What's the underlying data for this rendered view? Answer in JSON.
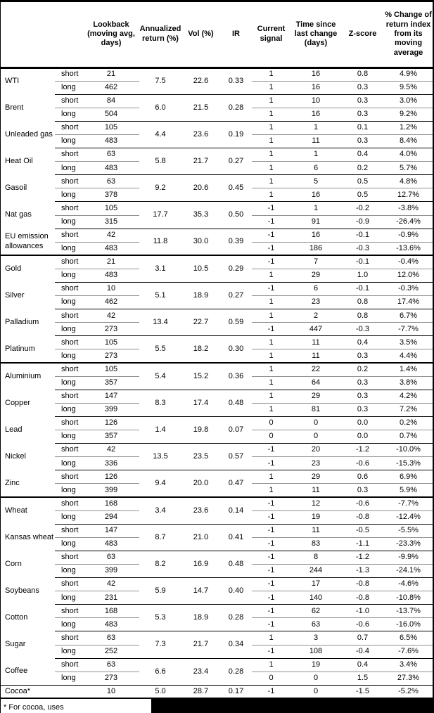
{
  "table": {
    "column_headers": {
      "lookback": "Lookback (moving avg, days)",
      "annualized": "Annualized return (%)",
      "vol": "Vol (%)",
      "ir": "IR",
      "signal": "Current signal",
      "time": "Time since last change (days)",
      "zscore": "Z-score",
      "change": "% Change of return index from its moving average"
    },
    "groups": [
      {
        "name": "WTI",
        "annualized": "7.5",
        "vol": "22.6",
        "ir": "0.33",
        "legs": [
          {
            "leg": "short",
            "lookback": "21",
            "signal": "1",
            "time": "16",
            "zscore": "0.8",
            "change": "4.9%"
          },
          {
            "leg": "long",
            "lookback": "462",
            "signal": "1",
            "time": "16",
            "zscore": "0.3",
            "change": "9.5%"
          }
        ]
      },
      {
        "name": "Brent",
        "annualized": "6.0",
        "vol": "21.5",
        "ir": "0.28",
        "legs": [
          {
            "leg": "short",
            "lookback": "84",
            "signal": "1",
            "time": "10",
            "zscore": "0.3",
            "change": "3.0%"
          },
          {
            "leg": "long",
            "lookback": "504",
            "signal": "1",
            "time": "16",
            "zscore": "0.3",
            "change": "9.2%"
          }
        ]
      },
      {
        "name": "Unleaded gas",
        "annualized": "4.4",
        "vol": "23.6",
        "ir": "0.19",
        "legs": [
          {
            "leg": "short",
            "lookback": "105",
            "signal": "1",
            "time": "1",
            "zscore": "0.1",
            "change": "1.2%"
          },
          {
            "leg": "long",
            "lookback": "483",
            "signal": "1",
            "time": "11",
            "zscore": "0.3",
            "change": "8.4%"
          }
        ]
      },
      {
        "name": "Heat Oil",
        "annualized": "5.8",
        "vol": "21.7",
        "ir": "0.27",
        "legs": [
          {
            "leg": "short",
            "lookback": "63",
            "signal": "1",
            "time": "1",
            "zscore": "0.4",
            "change": "4.0%"
          },
          {
            "leg": "long",
            "lookback": "483",
            "signal": "1",
            "time": "6",
            "zscore": "0.2",
            "change": "5.7%"
          }
        ]
      },
      {
        "name": "Gasoil",
        "annualized": "9.2",
        "vol": "20.6",
        "ir": "0.45",
        "legs": [
          {
            "leg": "short",
            "lookback": "63",
            "signal": "1",
            "time": "5",
            "zscore": "0.5",
            "change": "4.8%"
          },
          {
            "leg": "long",
            "lookback": "378",
            "signal": "1",
            "time": "16",
            "zscore": "0.5",
            "change": "12.7%"
          }
        ]
      },
      {
        "name": "Nat gas",
        "annualized": "17.7",
        "vol": "35.3",
        "ir": "0.50",
        "legs": [
          {
            "leg": "short",
            "lookback": "105",
            "signal": "-1",
            "time": "1",
            "zscore": "-0.2",
            "change": "-3.8%"
          },
          {
            "leg": "long",
            "lookback": "315",
            "signal": "-1",
            "time": "91",
            "zscore": "-0.9",
            "change": "-26.4%"
          }
        ]
      },
      {
        "name": "EU emission allowances",
        "annualized": "11.8",
        "vol": "30.0",
        "ir": "0.39",
        "legs": [
          {
            "leg": "short",
            "lookback": "42",
            "signal": "-1",
            "time": "16",
            "zscore": "-0.1",
            "change": "-0.9%"
          },
          {
            "leg": "long",
            "lookback": "483",
            "signal": "-1",
            "time": "186",
            "zscore": "-0.3",
            "change": "-13.6%"
          }
        ]
      },
      {
        "name": "Gold",
        "section_start": true,
        "annualized": "3.1",
        "vol": "10.5",
        "ir": "0.29",
        "legs": [
          {
            "leg": "short",
            "lookback": "21",
            "signal": "-1",
            "time": "7",
            "zscore": "-0.1",
            "change": "-0.4%"
          },
          {
            "leg": "long",
            "lookback": "483",
            "signal": "1",
            "time": "29",
            "zscore": "1.0",
            "change": "12.0%"
          }
        ]
      },
      {
        "name": "Silver",
        "annualized": "5.1",
        "vol": "18.9",
        "ir": "0.27",
        "legs": [
          {
            "leg": "short",
            "lookback": "10",
            "signal": "-1",
            "time": "6",
            "zscore": "-0.1",
            "change": "-0.3%"
          },
          {
            "leg": "long",
            "lookback": "462",
            "signal": "1",
            "time": "23",
            "zscore": "0.8",
            "change": "17.4%"
          }
        ]
      },
      {
        "name": "Palladium",
        "annualized": "13.4",
        "vol": "22.7",
        "ir": "0.59",
        "legs": [
          {
            "leg": "short",
            "lookback": "42",
            "signal": "1",
            "time": "2",
            "zscore": "0.8",
            "change": "6.7%"
          },
          {
            "leg": "long",
            "lookback": "273",
            "signal": "-1",
            "time": "447",
            "zscore": "-0.3",
            "change": "-7.7%"
          }
        ]
      },
      {
        "name": "Platinum",
        "annualized": "5.5",
        "vol": "18.2",
        "ir": "0.30",
        "legs": [
          {
            "leg": "short",
            "lookback": "105",
            "signal": "1",
            "time": "11",
            "zscore": "0.4",
            "change": "3.5%"
          },
          {
            "leg": "long",
            "lookback": "273",
            "signal": "1",
            "time": "11",
            "zscore": "0.3",
            "change": "4.4%"
          }
        ]
      },
      {
        "name": "Aluminium",
        "section_start": true,
        "annualized": "5.4",
        "vol": "15.2",
        "ir": "0.36",
        "legs": [
          {
            "leg": "short",
            "lookback": "105",
            "signal": "1",
            "time": "22",
            "zscore": "0.2",
            "change": "1.4%"
          },
          {
            "leg": "long",
            "lookback": "357",
            "signal": "1",
            "time": "64",
            "zscore": "0.3",
            "change": "3.8%"
          }
        ]
      },
      {
        "name": "Copper",
        "annualized": "8.3",
        "vol": "17.4",
        "ir": "0.48",
        "legs": [
          {
            "leg": "short",
            "lookback": "147",
            "signal": "1",
            "time": "29",
            "zscore": "0.3",
            "change": "4.2%"
          },
          {
            "leg": "long",
            "lookback": "399",
            "signal": "1",
            "time": "81",
            "zscore": "0.3",
            "change": "7.2%"
          }
        ]
      },
      {
        "name": "Lead",
        "annualized": "1.4",
        "vol": "19.8",
        "ir": "0.07",
        "legs": [
          {
            "leg": "short",
            "lookback": "126",
            "signal": "0",
            "time": "0",
            "zscore": "0.0",
            "change": "0.2%"
          },
          {
            "leg": "long",
            "lookback": "357",
            "signal": "0",
            "time": "0",
            "zscore": "0.0",
            "change": "0.7%"
          }
        ]
      },
      {
        "name": "Nickel",
        "annualized": "13.5",
        "vol": "23.5",
        "ir": "0.57",
        "legs": [
          {
            "leg": "short",
            "lookback": "42",
            "signal": "-1",
            "time": "20",
            "zscore": "-1.2",
            "change": "-10.0%"
          },
          {
            "leg": "long",
            "lookback": "336",
            "signal": "-1",
            "time": "23",
            "zscore": "-0.6",
            "change": "-15.3%"
          }
        ]
      },
      {
        "name": "Zinc",
        "annualized": "9.4",
        "vol": "20.0",
        "ir": "0.47",
        "legs": [
          {
            "leg": "short",
            "lookback": "126",
            "signal": "1",
            "time": "29",
            "zscore": "0.6",
            "change": "6.9%"
          },
          {
            "leg": "long",
            "lookback": "399",
            "signal": "1",
            "time": "11",
            "zscore": "0.3",
            "change": "5.9%"
          }
        ]
      },
      {
        "name": "Wheat",
        "section_start": true,
        "annualized": "3.4",
        "vol": "23.6",
        "ir": "0.14",
        "legs": [
          {
            "leg": "short",
            "lookback": "168",
            "signal": "-1",
            "time": "12",
            "zscore": "-0.6",
            "change": "-7.7%"
          },
          {
            "leg": "long",
            "lookback": "294",
            "signal": "-1",
            "time": "19",
            "zscore": "-0.8",
            "change": "-12.4%"
          }
        ]
      },
      {
        "name": "Kansas wheat",
        "annualized": "8.7",
        "vol": "21.0",
        "ir": "0.41",
        "legs": [
          {
            "leg": "short",
            "lookback": "147",
            "signal": "-1",
            "time": "11",
            "zscore": "-0.5",
            "change": "-5.5%"
          },
          {
            "leg": "long",
            "lookback": "483",
            "signal": "-1",
            "time": "83",
            "zscore": "-1.1",
            "change": "-23.3%"
          }
        ]
      },
      {
        "name": "Corn",
        "annualized": "8.2",
        "vol": "16.9",
        "ir": "0.48",
        "legs": [
          {
            "leg": "short",
            "lookback": "63",
            "signal": "-1",
            "time": "8",
            "zscore": "-1.2",
            "change": "-9.9%"
          },
          {
            "leg": "long",
            "lookback": "399",
            "signal": "-1",
            "time": "244",
            "zscore": "-1.3",
            "change": "-24.1%"
          }
        ]
      },
      {
        "name": "Soybeans",
        "annualized": "5.9",
        "vol": "14.7",
        "ir": "0.40",
        "legs": [
          {
            "leg": "short",
            "lookback": "42",
            "signal": "-1",
            "time": "17",
            "zscore": "-0.8",
            "change": "-4.6%"
          },
          {
            "leg": "long",
            "lookback": "231",
            "signal": "-1",
            "time": "140",
            "zscore": "-0.8",
            "change": "-10.8%"
          }
        ]
      },
      {
        "name": "Cotton",
        "annualized": "5.3",
        "vol": "18.9",
        "ir": "0.28",
        "legs": [
          {
            "leg": "short",
            "lookback": "168",
            "signal": "-1",
            "time": "62",
            "zscore": "-1.0",
            "change": "-13.7%"
          },
          {
            "leg": "long",
            "lookback": "483",
            "signal": "-1",
            "time": "63",
            "zscore": "-0.6",
            "change": "-16.0%"
          }
        ]
      },
      {
        "name": "Sugar",
        "annualized": "7.3",
        "vol": "21.7",
        "ir": "0.34",
        "legs": [
          {
            "leg": "short",
            "lookback": "63",
            "signal": "1",
            "time": "3",
            "zscore": "0.7",
            "change": "6.5%"
          },
          {
            "leg": "long",
            "lookback": "252",
            "signal": "-1",
            "time": "108",
            "zscore": "-0.4",
            "change": "-7.6%"
          }
        ]
      },
      {
        "name": "Coffee",
        "annualized": "6.6",
        "vol": "23.4",
        "ir": "0.28",
        "legs": [
          {
            "leg": "short",
            "lookback": "63",
            "signal": "1",
            "time": "19",
            "zscore": "0.4",
            "change": "3.4%"
          },
          {
            "leg": "long",
            "lookback": "273",
            "signal": "0",
            "time": "0",
            "zscore": "1.5",
            "change": "27.3%"
          }
        ]
      },
      {
        "name": "Cocoa*",
        "full_top": true,
        "annualized": "5.0",
        "vol": "28.7",
        "ir": "0.17",
        "legs": [
          {
            "leg": "",
            "lookback": "10",
            "signal": "-1",
            "time": "0",
            "zscore": "-1.5",
            "change": "-5.2%"
          }
        ]
      }
    ]
  },
  "footnote": {
    "visible_text": "* For cocoa, uses"
  }
}
